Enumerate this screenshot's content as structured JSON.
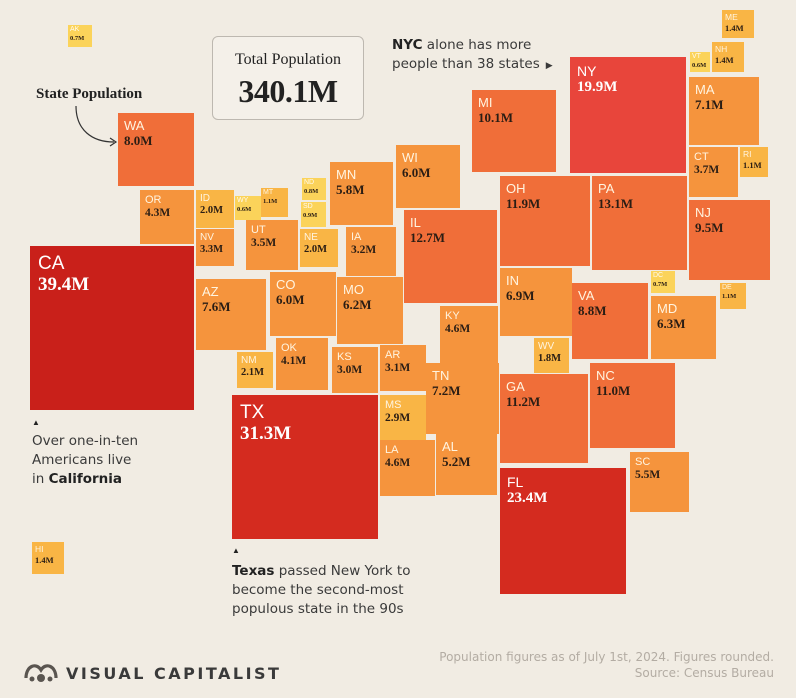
{
  "header": {
    "total_label": "Total Population",
    "total_value": "340.1M"
  },
  "annotations": {
    "state_population": "State Population",
    "nyc_line1": "NYC",
    "nyc_line1_rest": " alone has more",
    "nyc_line2": "people than 38 states",
    "ca_line1": "Over one-in-ten",
    "ca_line2": "Americans live",
    "ca_line3_pre": "in ",
    "ca_line3_bold": "California",
    "tx_line1_bold": "Texas",
    "tx_line1_rest": " passed New York to",
    "tx_line2": "become the second-most",
    "tx_line3": "populous state in the 90s"
  },
  "footer": {
    "brand": "VISUAL CAPITALIST",
    "note1": "Population figures as of July 1st, 2024. Figures rounded.",
    "note2": "Source: Census Bureau"
  },
  "colors": {
    "background": "#f1ece3",
    "scale": [
      "#fbd35a",
      "#f9b545",
      "#f5943d",
      "#f06e39",
      "#e8453b",
      "#d42b1f",
      "#c9201a"
    ]
  },
  "chart_data": {
    "type": "table",
    "value_unit": "M",
    "items": [
      {
        "state": "AK",
        "label": "0.7M",
        "value": 0.7
      },
      {
        "state": "ME",
        "label": "1.4M",
        "value": 1.4
      },
      {
        "state": "VT",
        "label": "0.6M",
        "value": 0.6
      },
      {
        "state": "NH",
        "label": "1.4M",
        "value": 1.4
      },
      {
        "state": "NY",
        "label": "19.9M",
        "value": 19.9
      },
      {
        "state": "MA",
        "label": "7.1M",
        "value": 7.1
      },
      {
        "state": "MI",
        "label": "10.1M",
        "value": 10.1
      },
      {
        "state": "WA",
        "label": "8.0M",
        "value": 8.0
      },
      {
        "state": "WI",
        "label": "6.0M",
        "value": 6.0
      },
      {
        "state": "MN",
        "label": "5.8M",
        "value": 5.8
      },
      {
        "state": "CT",
        "label": "3.7M",
        "value": 3.7
      },
      {
        "state": "RI",
        "label": "1.1M",
        "value": 1.1
      },
      {
        "state": "OH",
        "label": "11.9M",
        "value": 11.9
      },
      {
        "state": "PA",
        "label": "13.1M",
        "value": 13.1
      },
      {
        "state": "OR",
        "label": "4.3M",
        "value": 4.3
      },
      {
        "state": "ID",
        "label": "2.0M",
        "value": 2.0
      },
      {
        "state": "WY",
        "label": "0.6M",
        "value": 0.6
      },
      {
        "state": "MT",
        "label": "1.1M",
        "value": 1.1
      },
      {
        "state": "ND",
        "label": "0.8M",
        "value": 0.8
      },
      {
        "state": "SD",
        "label": "0.9M",
        "value": 0.9
      },
      {
        "state": "IL",
        "label": "12.7M",
        "value": 12.7
      },
      {
        "state": "NJ",
        "label": "9.5M",
        "value": 9.5
      },
      {
        "state": "CA",
        "label": "39.4M",
        "value": 39.4
      },
      {
        "state": "NV",
        "label": "3.3M",
        "value": 3.3
      },
      {
        "state": "UT",
        "label": "3.5M",
        "value": 3.5
      },
      {
        "state": "NE",
        "label": "2.0M",
        "value": 2.0
      },
      {
        "state": "IA",
        "label": "3.2M",
        "value": 3.2
      },
      {
        "state": "IN",
        "label": "6.9M",
        "value": 6.9
      },
      {
        "state": "DC",
        "label": "0.7M",
        "value": 0.7
      },
      {
        "state": "DE",
        "label": "1.1M",
        "value": 1.1
      },
      {
        "state": "AZ",
        "label": "7.6M",
        "value": 7.6
      },
      {
        "state": "CO",
        "label": "6.0M",
        "value": 6.0
      },
      {
        "state": "MO",
        "label": "6.2M",
        "value": 6.2
      },
      {
        "state": "KY",
        "label": "4.6M",
        "value": 4.6
      },
      {
        "state": "VA",
        "label": "8.8M",
        "value": 8.8
      },
      {
        "state": "MD",
        "label": "6.3M",
        "value": 6.3
      },
      {
        "state": "WV",
        "label": "1.8M",
        "value": 1.8
      },
      {
        "state": "NM",
        "label": "2.1M",
        "value": 2.1
      },
      {
        "state": "OK",
        "label": "4.1M",
        "value": 4.1
      },
      {
        "state": "KS",
        "label": "3.0M",
        "value": 3.0
      },
      {
        "state": "AR",
        "label": "3.1M",
        "value": 3.1
      },
      {
        "state": "TN",
        "label": "7.2M",
        "value": 7.2
      },
      {
        "state": "NC",
        "label": "11.0M",
        "value": 11.0
      },
      {
        "state": "GA",
        "label": "11.2M",
        "value": 11.2
      },
      {
        "state": "TX",
        "label": "31.3M",
        "value": 31.3
      },
      {
        "state": "MS",
        "label": "2.9M",
        "value": 2.9
      },
      {
        "state": "LA",
        "label": "4.6M",
        "value": 4.6
      },
      {
        "state": "AL",
        "label": "5.2M",
        "value": 5.2
      },
      {
        "state": "SC",
        "label": "5.5M",
        "value": 5.5
      },
      {
        "state": "FL",
        "label": "23.4M",
        "value": 23.4
      },
      {
        "state": "HI",
        "label": "1.4M",
        "value": 1.4
      }
    ]
  }
}
